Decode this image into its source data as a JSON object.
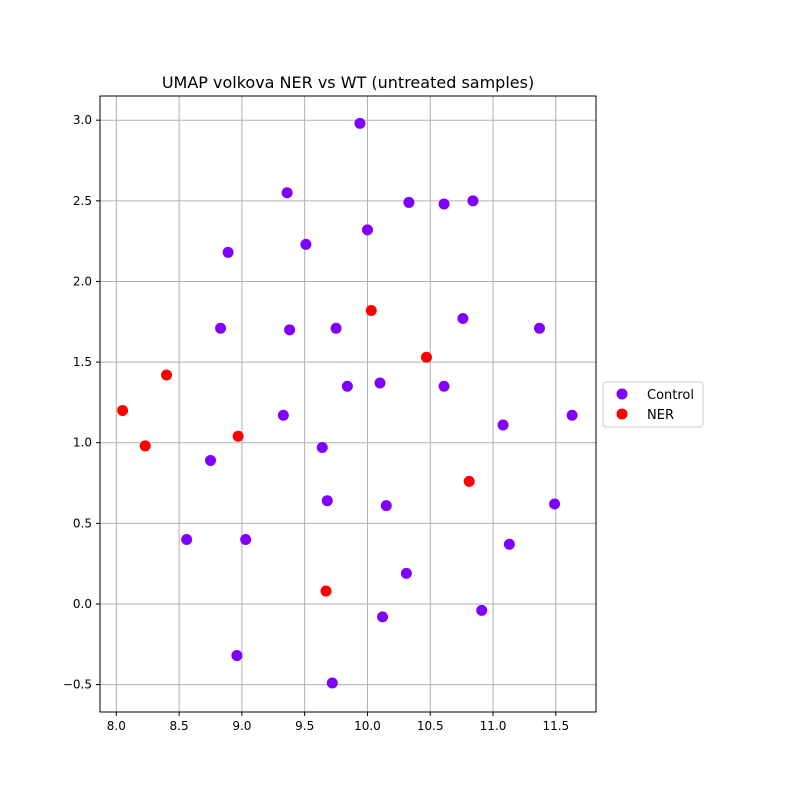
{
  "chart_data": {
    "type": "scatter",
    "title": "UMAP volkova NER vs WT (untreated samples)",
    "xlabel": "",
    "ylabel": "",
    "xlim": [
      7.87,
      11.82
    ],
    "ylim": [
      -0.67,
      3.15
    ],
    "xticks": [
      8.0,
      8.5,
      9.0,
      9.5,
      10.0,
      10.5,
      11.0,
      11.5
    ],
    "xtick_labels": [
      "8.0",
      "8.5",
      "9.0",
      "9.5",
      "10.0",
      "10.5",
      "11.0",
      "11.5"
    ],
    "yticks": [
      -0.5,
      0.0,
      0.5,
      1.0,
      1.5,
      2.0,
      2.5,
      3.0
    ],
    "ytick_labels": [
      "−0.5",
      "0.0",
      "0.5",
      "1.0",
      "1.5",
      "2.0",
      "2.5",
      "3.0"
    ],
    "grid": true,
    "legend_position": "center-right-outside",
    "series": [
      {
        "name": "Control",
        "color": "#8000ff",
        "points": [
          [
            9.94,
            2.98
          ],
          [
            9.36,
            2.55
          ],
          [
            10.33,
            2.49
          ],
          [
            10.61,
            2.48
          ],
          [
            10.84,
            2.5
          ],
          [
            9.51,
            2.23
          ],
          [
            10.0,
            2.32
          ],
          [
            8.89,
            2.18
          ],
          [
            8.83,
            1.71
          ],
          [
            9.38,
            1.7
          ],
          [
            9.75,
            1.71
          ],
          [
            10.76,
            1.77
          ],
          [
            11.37,
            1.71
          ],
          [
            9.84,
            1.35
          ],
          [
            10.1,
            1.37
          ],
          [
            10.61,
            1.35
          ],
          [
            9.33,
            1.17
          ],
          [
            11.08,
            1.11
          ],
          [
            11.63,
            1.17
          ],
          [
            8.75,
            0.89
          ],
          [
            9.64,
            0.97
          ],
          [
            9.68,
            0.64
          ],
          [
            10.15,
            0.61
          ],
          [
            11.49,
            0.62
          ],
          [
            8.56,
            0.4
          ],
          [
            9.03,
            0.4
          ],
          [
            11.13,
            0.37
          ],
          [
            10.31,
            0.19
          ],
          [
            10.91,
            -0.04
          ],
          [
            10.12,
            -0.08
          ],
          [
            8.96,
            -0.32
          ],
          [
            9.72,
            -0.49
          ]
        ]
      },
      {
        "name": "NER",
        "color": "#ff0000",
        "points": [
          [
            10.03,
            1.82
          ],
          [
            10.47,
            1.53
          ],
          [
            8.4,
            1.42
          ],
          [
            8.05,
            1.2
          ],
          [
            8.23,
            0.98
          ],
          [
            8.97,
            1.04
          ],
          [
            10.81,
            0.76
          ],
          [
            9.67,
            0.08
          ]
        ]
      }
    ]
  }
}
